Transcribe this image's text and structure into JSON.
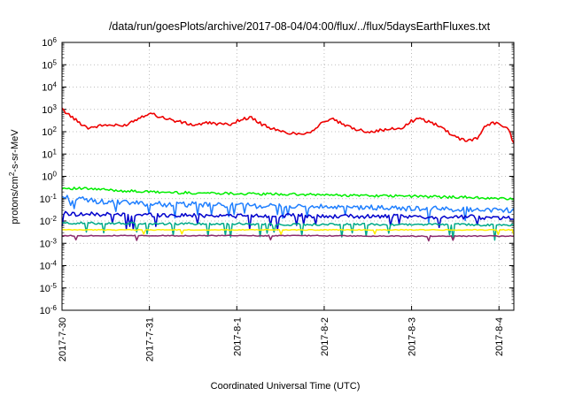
{
  "chart_data": {
    "type": "line",
    "title": "/data/run/goesPlots/archive/2017-08-04/04:00/flux/../flux/5daysEarthFluxes.txt",
    "xlabel": "Coordinated Universal Time (UTC)",
    "ylabel": "protons/cm²-s-sr-MeV",
    "ylabel_parts": {
      "pre": "protons/cm",
      "sup": "2",
      "post": "-s-sr-MeV"
    },
    "y_scale": "log",
    "ylim_exponents": [
      -6,
      6
    ],
    "y_ticks": [
      {
        "base": "10",
        "exp": "-6"
      },
      {
        "base": "10",
        "exp": "-5"
      },
      {
        "base": "10",
        "exp": "-4"
      },
      {
        "base": "10",
        "exp": "-3"
      },
      {
        "base": "10",
        "exp": "-2"
      },
      {
        "base": "10",
        "exp": "-1"
      },
      {
        "base": "10",
        "exp": "0"
      },
      {
        "base": "10",
        "exp": "1"
      },
      {
        "base": "10",
        "exp": "2"
      },
      {
        "base": "10",
        "exp": "3"
      },
      {
        "base": "10",
        "exp": "4"
      },
      {
        "base": "10",
        "exp": "5"
      },
      {
        "base": "10",
        "exp": "6"
      }
    ],
    "x_ticks": [
      "2017-7-30",
      "2017-7-31",
      "2017-8-1",
      "2017-8-2",
      "2017-8-3",
      "2017-8-4"
    ],
    "x_range_days": [
      0,
      5.17
    ],
    "grid": true,
    "series": [
      {
        "color": "#ee0000",
        "x": [
          0,
          0.1,
          0.2,
          0.3,
          0.5,
          0.7,
          0.9,
          1.0,
          1.1,
          1.3,
          1.5,
          1.7,
          1.9,
          2.0,
          2.15,
          2.3,
          2.5,
          2.7,
          2.85,
          3.0,
          3.1,
          3.3,
          3.5,
          3.7,
          3.9,
          4.0,
          4.1,
          4.3,
          4.45,
          4.6,
          4.75,
          4.85,
          4.95,
          5.1,
          5.17
        ],
        "y": [
          1000,
          500,
          250,
          150,
          200,
          180,
          450,
          700,
          500,
          300,
          200,
          250,
          200,
          300,
          450,
          200,
          100,
          80,
          100,
          300,
          350,
          150,
          100,
          120,
          150,
          300,
          380,
          200,
          80,
          40,
          50,
          200,
          250,
          150,
          30
        ]
      },
      {
        "color": "#00ee00",
        "x": [
          0,
          0.25,
          0.5,
          0.75,
          1.0,
          1.25,
          1.5,
          1.75,
          2.0,
          2.25,
          2.5,
          2.75,
          3.0,
          3.25,
          3.5,
          3.75,
          4.0,
          4.25,
          4.5,
          4.75,
          5.0,
          5.17
        ],
        "y": [
          0.3,
          0.28,
          0.25,
          0.22,
          0.2,
          0.19,
          0.18,
          0.18,
          0.17,
          0.16,
          0.16,
          0.15,
          0.15,
          0.14,
          0.14,
          0.13,
          0.13,
          0.12,
          0.12,
          0.11,
          0.1,
          0.1
        ]
      },
      {
        "color": "#1f7fff",
        "x": [
          0,
          0.25,
          0.5,
          0.75,
          1.0,
          1.25,
          1.5,
          1.75,
          2.0,
          2.25,
          2.5,
          2.75,
          3.0,
          3.25,
          3.5,
          3.75,
          4.0,
          4.25,
          4.5,
          4.75,
          5.0,
          5.17
        ],
        "y": [
          0.12,
          0.09,
          0.07,
          0.065,
          0.06,
          0.055,
          0.055,
          0.05,
          0.05,
          0.048,
          0.045,
          0.045,
          0.042,
          0.04,
          0.04,
          0.038,
          0.036,
          0.035,
          0.034,
          0.033,
          0.032,
          0.03
        ]
      },
      {
        "color": "#0000cc",
        "x": [
          0,
          0.25,
          0.5,
          0.75,
          1.0,
          1.25,
          1.5,
          1.75,
          2.0,
          2.25,
          2.5,
          2.75,
          3.0,
          3.25,
          3.5,
          3.75,
          4.0,
          4.25,
          4.5,
          4.75,
          5.0,
          5.17
        ],
        "y": [
          0.022,
          0.02,
          0.02,
          0.019,
          0.019,
          0.018,
          0.018,
          0.018,
          0.017,
          0.017,
          0.017,
          0.017,
          0.016,
          0.016,
          0.016,
          0.016,
          0.015,
          0.015,
          0.015,
          0.015,
          0.014,
          0.014
        ]
      },
      {
        "color": "#00aa88",
        "x": [
          0,
          0.5,
          1.0,
          1.5,
          2.0,
          2.5,
          3.0,
          3.5,
          4.0,
          4.5,
          5.0,
          5.17
        ],
        "y": [
          0.008,
          0.008,
          0.0075,
          0.0075,
          0.0075,
          0.007,
          0.007,
          0.007,
          0.007,
          0.007,
          0.0065,
          0.0065
        ]
      },
      {
        "color": "#ffee00",
        "x": [
          0,
          0.5,
          1.0,
          1.5,
          2.0,
          2.5,
          3.0,
          3.5,
          4.0,
          4.5,
          5.0,
          5.17
        ],
        "y": [
          0.004,
          0.004,
          0.004,
          0.004,
          0.004,
          0.004,
          0.004,
          0.004,
          0.004,
          0.004,
          0.004,
          0.004
        ]
      },
      {
        "color": "#8b2a6b",
        "x": [
          0,
          0.5,
          1.0,
          1.5,
          2.0,
          2.5,
          3.0,
          3.5,
          4.0,
          4.5,
          5.0,
          5.17
        ],
        "y": [
          0.0022,
          0.0022,
          0.0022,
          0.0022,
          0.0022,
          0.0022,
          0.0022,
          0.0021,
          0.0021,
          0.0021,
          0.0021,
          0.0021
        ]
      }
    ]
  }
}
